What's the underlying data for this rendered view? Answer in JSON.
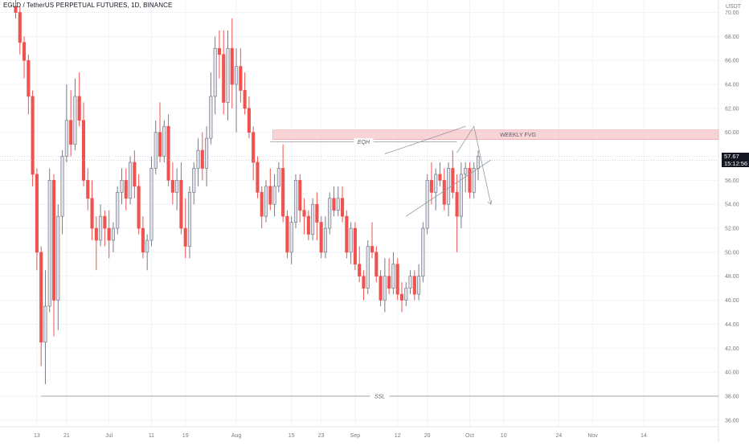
{
  "header": {
    "title": "EGLD / TetherUS PERPETUAL FUTURES, 1D, BINANCE"
  },
  "price_tag": {
    "price": "57.67",
    "countdown": "15:12:56"
  },
  "chart_data": {
    "type": "candlestick",
    "currency": "USDT",
    "ylim": [
      36,
      70
    ],
    "y_ticks": [
      "70.00",
      "68.00",
      "66.00",
      "64.00",
      "62.00",
      "60.00",
      "58.00",
      "56.00",
      "54.00",
      "52.00",
      "50.00",
      "48.00",
      "46.00",
      "44.00",
      "42.00",
      "40.00",
      "38.00",
      "36.00"
    ],
    "x_ticks": [
      {
        "label": "13",
        "index": 5
      },
      {
        "label": "21",
        "index": 12
      },
      {
        "label": "Jul",
        "index": 22
      },
      {
        "label": "11",
        "index": 32
      },
      {
        "label": "19",
        "index": 40
      },
      {
        "label": "Aug",
        "index": 52
      },
      {
        "label": "15",
        "index": 65
      },
      {
        "label": "23",
        "index": 72
      },
      {
        "label": "Sep",
        "index": 80
      },
      {
        "label": "12",
        "index": 90
      },
      {
        "label": "20",
        "index": 97
      },
      {
        "label": "Oct",
        "index": 107
      },
      {
        "label": "10",
        "index": 115
      },
      {
        "label": "24",
        "index": 128
      },
      {
        "label": "Nov",
        "index": 136
      },
      {
        "label": "14",
        "index": 148
      }
    ],
    "candles": [
      [
        70.5,
        71.5,
        69.5,
        70.0
      ],
      [
        70.0,
        70.5,
        66.5,
        67.5
      ],
      [
        67.5,
        68.0,
        64.5,
        66.0
      ],
      [
        66.0,
        66.5,
        61.5,
        63.0
      ],
      [
        63.0,
        63.5,
        55.5,
        56.5
      ],
      [
        56.5,
        57.0,
        48.5,
        50.0
      ],
      [
        50.0,
        50.5,
        40.5,
        42.5
      ],
      [
        42.5,
        48.5,
        39.0,
        45.5
      ],
      [
        45.5,
        57.0,
        45.0,
        56.0
      ],
      [
        56.0,
        56.5,
        43.0,
        46.0
      ],
      [
        46.0,
        54.0,
        43.5,
        53.0
      ],
      [
        53.0,
        58.5,
        51.5,
        58.0
      ],
      [
        58.0,
        64.0,
        57.5,
        61.0
      ],
      [
        61.0,
        63.5,
        58.0,
        59.0
      ],
      [
        59.0,
        64.5,
        58.5,
        63.0
      ],
      [
        63.0,
        65.0,
        60.5,
        61.0
      ],
      [
        61.0,
        62.5,
        55.5,
        56.0
      ],
      [
        56.0,
        57.0,
        53.5,
        54.5
      ],
      [
        54.5,
        56.0,
        51.0,
        52.0
      ],
      [
        52.0,
        53.0,
        48.5,
        51.0
      ],
      [
        51.0,
        54.0,
        50.5,
        53.0
      ],
      [
        53.0,
        53.5,
        50.5,
        52.0
      ],
      [
        52.0,
        53.5,
        49.5,
        51.0
      ],
      [
        51.0,
        52.5,
        50.0,
        52.0
      ],
      [
        52.0,
        55.5,
        51.5,
        55.0
      ],
      [
        55.0,
        57.0,
        54.0,
        56.0
      ],
      [
        56.0,
        57.0,
        53.5,
        54.5
      ],
      [
        54.5,
        58.0,
        54.0,
        57.5
      ],
      [
        57.5,
        58.5,
        54.5,
        55.5
      ],
      [
        55.5,
        56.5,
        51.5,
        52.0
      ],
      [
        52.0,
        53.0,
        49.5,
        50.0
      ],
      [
        50.0,
        51.5,
        48.5,
        51.0
      ],
      [
        51.0,
        58.0,
        50.5,
        57.0
      ],
      [
        57.0,
        61.0,
        56.5,
        60.0
      ],
      [
        60.0,
        62.5,
        57.5,
        58.0
      ],
      [
        58.0,
        61.0,
        57.5,
        60.5
      ],
      [
        60.5,
        61.5,
        55.5,
        56.0
      ],
      [
        56.0,
        57.5,
        54.0,
        55.0
      ],
      [
        55.0,
        57.0,
        53.5,
        56.0
      ],
      [
        56.0,
        57.5,
        51.5,
        52.0
      ],
      [
        52.0,
        54.5,
        49.5,
        50.5
      ],
      [
        50.5,
        55.5,
        49.5,
        55.0
      ],
      [
        55.0,
        57.5,
        54.0,
        57.0
      ],
      [
        57.0,
        59.5,
        55.5,
        58.5
      ],
      [
        58.5,
        60.0,
        56.0,
        57.0
      ],
      [
        57.0,
        60.5,
        55.5,
        59.5
      ],
      [
        59.5,
        65.0,
        59.0,
        63.0
      ],
      [
        63.0,
        68.0,
        61.5,
        67.0
      ],
      [
        67.0,
        68.5,
        64.5,
        66.5
      ],
      [
        66.5,
        68.5,
        61.5,
        62.5
      ],
      [
        62.5,
        68.5,
        61.0,
        67.0
      ],
      [
        67.0,
        69.5,
        62.0,
        64.0
      ],
      [
        64.0,
        67.0,
        60.0,
        65.5
      ],
      [
        65.5,
        67.0,
        62.5,
        63.5
      ],
      [
        63.5,
        65.0,
        61.5,
        62.0
      ],
      [
        62.0,
        63.0,
        59.5,
        60.0
      ],
      [
        60.0,
        60.5,
        56.0,
        57.5
      ],
      [
        57.5,
        58.0,
        54.5,
        55.0
      ],
      [
        55.0,
        55.5,
        52.0,
        53.0
      ],
      [
        53.0,
        56.0,
        52.5,
        55.5
      ],
      [
        55.5,
        57.0,
        53.5,
        54.0
      ],
      [
        54.0,
        56.5,
        53.0,
        55.5
      ],
      [
        55.5,
        57.5,
        55.0,
        57.0
      ],
      [
        57.0,
        59.0,
        52.5,
        53.0
      ],
      [
        53.0,
        53.5,
        49.5,
        50.0
      ],
      [
        50.0,
        53.0,
        49.0,
        52.5
      ],
      [
        52.5,
        56.5,
        52.0,
        56.0
      ],
      [
        56.0,
        56.5,
        52.5,
        53.5
      ],
      [
        53.5,
        54.5,
        51.5,
        53.0
      ],
      [
        53.0,
        53.5,
        51.0,
        51.5
      ],
      [
        51.5,
        54.5,
        51.0,
        54.0
      ],
      [
        54.0,
        55.0,
        51.0,
        52.5
      ],
      [
        52.5,
        53.0,
        49.5,
        50.0
      ],
      [
        50.0,
        53.0,
        49.5,
        52.0
      ],
      [
        52.0,
        55.0,
        51.5,
        54.5
      ],
      [
        54.5,
        55.5,
        53.0,
        53.5
      ],
      [
        53.5,
        55.5,
        53.0,
        54.5
      ],
      [
        54.5,
        55.5,
        52.5,
        53.0
      ],
      [
        53.0,
        53.5,
        49.5,
        50.0
      ],
      [
        50.0,
        52.5,
        49.0,
        52.0
      ],
      [
        52.0,
        52.5,
        48.5,
        49.0
      ],
      [
        49.0,
        50.5,
        47.5,
        48.0
      ],
      [
        48.0,
        48.5,
        46.0,
        47.0
      ],
      [
        47.0,
        51.0,
        46.5,
        50.5
      ],
      [
        50.5,
        52.5,
        49.5,
        50.0
      ],
      [
        50.0,
        50.5,
        47.5,
        48.0
      ],
      [
        48.0,
        48.5,
        45.5,
        46.0
      ],
      [
        46.0,
        49.5,
        45.0,
        48.0
      ],
      [
        48.0,
        49.5,
        46.5,
        47.0
      ],
      [
        47.0,
        50.0,
        46.5,
        49.0
      ],
      [
        49.0,
        49.5,
        46.0,
        46.5
      ],
      [
        46.5,
        47.5,
        45.0,
        46.0
      ],
      [
        46.0,
        47.5,
        45.5,
        47.0
      ],
      [
        47.0,
        48.5,
        46.5,
        48.0
      ],
      [
        48.0,
        48.5,
        46.0,
        46.5
      ],
      [
        46.5,
        49.0,
        46.0,
        48.0
      ],
      [
        48.0,
        52.5,
        47.5,
        52.0
      ],
      [
        52.0,
        56.5,
        51.5,
        56.0
      ],
      [
        56.0,
        57.5,
        54.0,
        55.0
      ],
      [
        55.0,
        57.0,
        53.5,
        56.5
      ],
      [
        56.5,
        57.5,
        55.5,
        56.0
      ],
      [
        56.0,
        57.0,
        53.5,
        54.0
      ],
      [
        54.0,
        57.5,
        53.0,
        57.0
      ],
      [
        57.0,
        58.5,
        54.5,
        55.0
      ],
      [
        55.0,
        56.5,
        50.0,
        53.0
      ],
      [
        53.0,
        57.5,
        52.0,
        56.5
      ],
      [
        56.5,
        57.5,
        55.0,
        57.0
      ],
      [
        57.0,
        57.5,
        54.5,
        55.0
      ],
      [
        55.0,
        57.5,
        54.5,
        57.0
      ],
      [
        57.0,
        58.5,
        56.0,
        58.0
      ]
    ],
    "zones": [
      {
        "label": "WEEKLY FVG",
        "y_range": [
          59.4,
          60.2
        ],
        "from_index": 61,
        "color": "#f7c5ca"
      }
    ],
    "levels": [
      {
        "label": "EQH",
        "y": 59.2,
        "from_index": 60,
        "to_index": 104
      },
      {
        "label": "SSL",
        "y": 38.0,
        "from_index": 6,
        "to_index": null
      }
    ],
    "annotations": [
      {
        "label": "channel-upper",
        "points": [
          [
            87,
            58.2
          ],
          [
            106,
            60.5
          ]
        ]
      },
      {
        "label": "channel-lower",
        "points": [
          [
            92,
            53.0
          ],
          [
            112,
            57.7
          ]
        ]
      },
      {
        "label": "projection",
        "points": [
          [
            104,
            58.3
          ],
          [
            108,
            60.5
          ],
          [
            112,
            54.0
          ]
        ]
      }
    ],
    "colors": {
      "up": "#787b86",
      "down": "#ef5350",
      "up_body": "#e0e3eb",
      "grid": "#f0f3fa",
      "text": "#131722"
    }
  }
}
